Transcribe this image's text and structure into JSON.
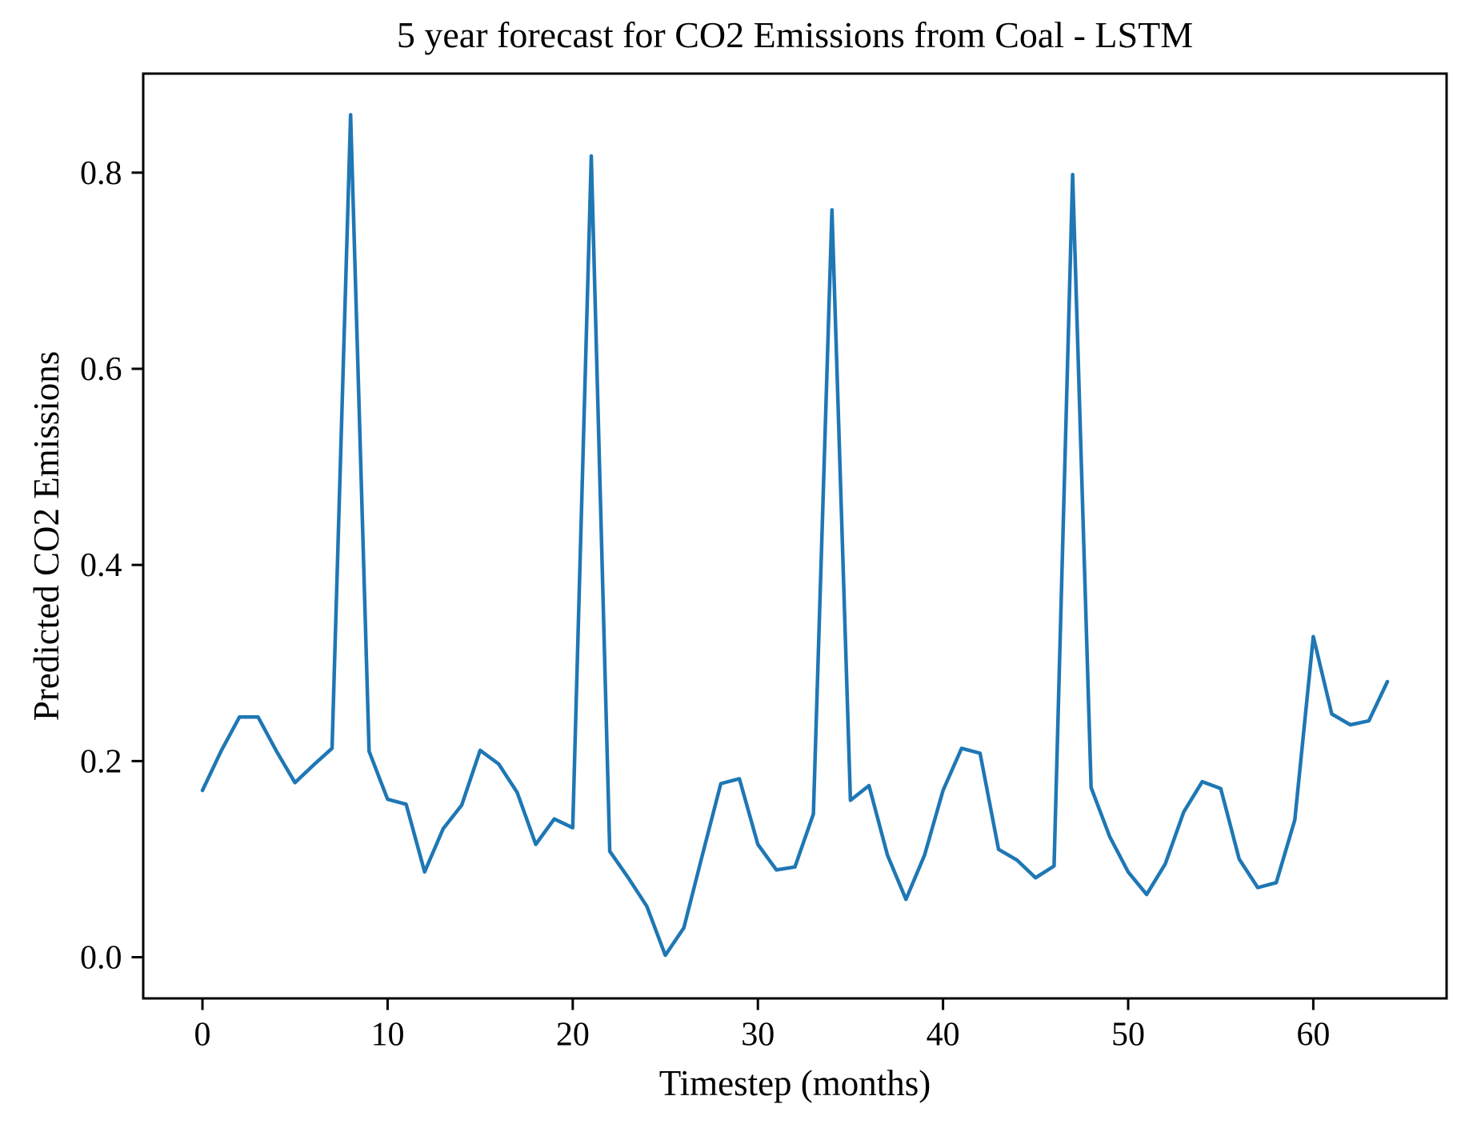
{
  "chart_data": {
    "type": "line",
    "title": "5 year forecast for CO2 Emissions from Coal - LSTM",
    "xlabel": "Timestep (months)",
    "ylabel": "Predicted CO2 Emissions",
    "grid": false,
    "legend": "none",
    "line_color": "#1f77b4",
    "axis_color": "#000000",
    "xlim": [
      -3.2,
      67.2
    ],
    "ylim": [
      -0.042,
      0.901
    ],
    "x_tick_values": [
      0,
      10,
      20,
      30,
      40,
      50,
      60
    ],
    "x_tick_labels": [
      "0",
      "10",
      "20",
      "30",
      "40",
      "50",
      "60"
    ],
    "y_tick_values": [
      0.0,
      0.2,
      0.4,
      0.6,
      0.8
    ],
    "y_tick_labels": [
      "0.0",
      "0.2",
      "0.4",
      "0.6",
      "0.8"
    ],
    "x": [
      0,
      1,
      2,
      3,
      4,
      5,
      6,
      7,
      8,
      9,
      10,
      11,
      12,
      13,
      14,
      15,
      16,
      17,
      18,
      19,
      20,
      21,
      22,
      23,
      24,
      25,
      26,
      27,
      28,
      29,
      30,
      31,
      32,
      33,
      34,
      35,
      36,
      37,
      38,
      39,
      40,
      41,
      42,
      43,
      44,
      45,
      46,
      47,
      48,
      49,
      50,
      51,
      52,
      53,
      54,
      55,
      56,
      57,
      58,
      59,
      60,
      61,
      62,
      63,
      64
    ],
    "values": [
      0.17,
      0.21,
      0.245,
      0.245,
      0.21,
      0.178,
      0.196,
      0.213,
      0.859,
      0.21,
      0.161,
      0.156,
      0.087,
      0.131,
      0.155,
      0.211,
      0.197,
      0.168,
      0.115,
      0.141,
      0.132,
      0.817,
      0.108,
      0.081,
      0.052,
      0.002,
      0.03,
      0.104,
      0.177,
      0.182,
      0.115,
      0.089,
      0.092,
      0.146,
      0.762,
      0.16,
      0.175,
      0.104,
      0.059,
      0.104,
      0.17,
      0.213,
      0.208,
      0.11,
      0.099,
      0.081,
      0.093,
      0.798,
      0.173,
      0.123,
      0.087,
      0.064,
      0.095,
      0.148,
      0.179,
      0.172,
      0.1,
      0.071,
      0.076,
      0.14,
      0.327,
      0.248,
      0.237,
      0.241,
      0.281
    ]
  }
}
